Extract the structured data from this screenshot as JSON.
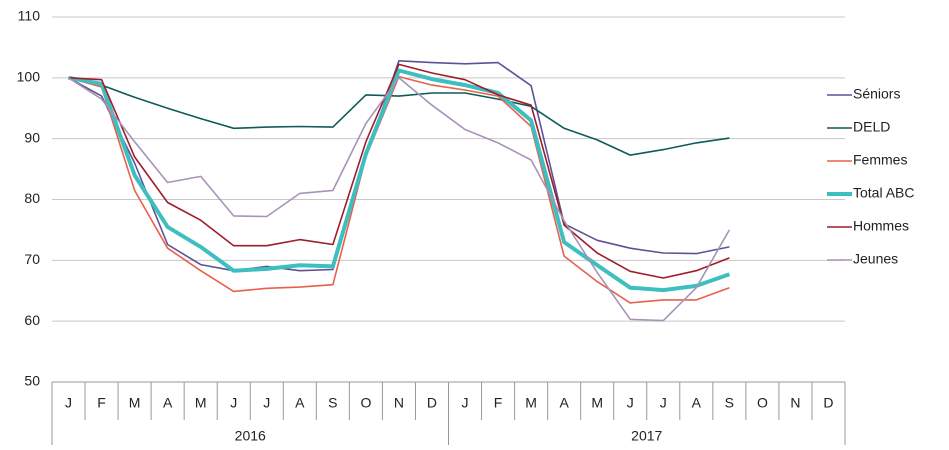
{
  "chart_data": {
    "type": "line",
    "categories": [
      "J",
      "F",
      "M",
      "A",
      "M",
      "J",
      "J",
      "A",
      "S",
      "O",
      "N",
      "D",
      "J",
      "F",
      "M",
      "A",
      "M",
      "J",
      "J",
      "A",
      "S",
      "O",
      "N",
      "D"
    ],
    "x_groups": [
      "2016",
      "2017"
    ],
    "ylim": [
      50,
      110
    ],
    "yticks": [
      50,
      60,
      70,
      80,
      90,
      100,
      110
    ],
    "grid": true,
    "legend": "right",
    "series": [
      {
        "name": "Séniors",
        "color": "#5e5196",
        "values": [
          100,
          97,
          86,
          72.6,
          69.3,
          68.3,
          69,
          68.3,
          68.5,
          87,
          102.8,
          102.5,
          102.3,
          102.5,
          98.7,
          76,
          73.3,
          72,
          71.2,
          71.1,
          72.2,
          null,
          null,
          null
        ]
      },
      {
        "name": "DELD",
        "color": "#0e5b57",
        "values": [
          100,
          98.8,
          96.8,
          95,
          93.3,
          91.7,
          91.9,
          92,
          91.9,
          97.2,
          97,
          97.5,
          97.5,
          96.5,
          95.3,
          91.7,
          89.8,
          87.3,
          88.2,
          89.3,
          90.1,
          null,
          null,
          null
        ]
      },
      {
        "name": "Femmes",
        "color": "#e8604c",
        "values": [
          100,
          98.5,
          81.5,
          72,
          68.3,
          64.9,
          65.4,
          65.6,
          66,
          87,
          100.2,
          98.8,
          98,
          97,
          92,
          70.7,
          66.5,
          63,
          63.5,
          63.5,
          65.5,
          null,
          null,
          null
        ]
      },
      {
        "name": "Total ABC",
        "color": "#3dbfbf",
        "width": 4,
        "values": [
          100,
          99,
          84,
          75.5,
          72.2,
          68.3,
          68.6,
          69.2,
          69,
          87.5,
          101.2,
          99.8,
          98.8,
          97.5,
          93,
          73,
          69.2,
          65.5,
          65.1,
          65.8,
          67.7,
          null,
          null,
          null
        ]
      },
      {
        "name": "Hommes",
        "color": "#a01c2c",
        "values": [
          100,
          99.7,
          87,
          79.5,
          76.6,
          72.4,
          72.4,
          73.4,
          72.6,
          89.5,
          102.2,
          100.8,
          99.7,
          97.2,
          95.5,
          75.8,
          71.2,
          68.2,
          67.1,
          68.3,
          70.4,
          null,
          null,
          null
        ]
      },
      {
        "name": "Jeunes",
        "color": "#a893b8",
        "values": [
          100,
          96.5,
          89.5,
          82.8,
          83.8,
          77.3,
          77.2,
          81,
          81.5,
          92.5,
          100,
          95.5,
          91.5,
          89.3,
          86.5,
          76.5,
          68,
          60.3,
          60.1,
          65.5,
          75,
          null,
          null,
          null
        ]
      }
    ]
  }
}
